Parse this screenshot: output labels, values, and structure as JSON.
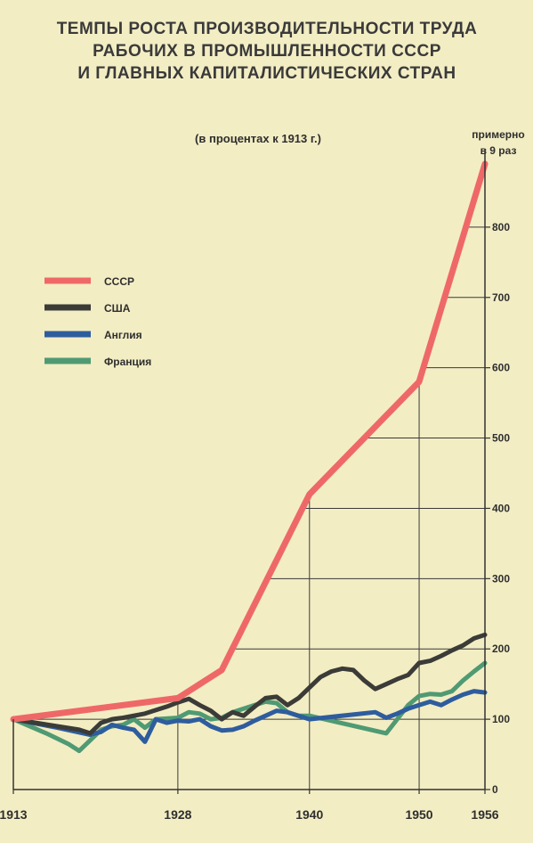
{
  "title_lines": [
    "ТЕМПЫ РОСТА ПРОИЗВОДИТЕЛЬНОСТИ ТРУДА",
    "РАБОЧИХ В ПРОМЫШЛЕННОСТИ СССР",
    "И ГЛАВНЫХ КАПИТАЛИСТИЧЕСКИХ СТРАН"
  ],
  "subtitle": "(в процентах к 1913 г.)",
  "note_lines": [
    "примерно",
    "в 9 раз"
  ],
  "chart_data": {
    "type": "line",
    "title": "ТЕМПЫ РОСТА ПРОИЗВОДИТЕЛЬНОСТИ ТРУДА РАБОЧИХ В ПРОМЫШЛЕННОСТИ СССР И ГЛАВНЫХ КАПИТАЛИСТИЧЕСКИХ СТРАН",
    "subtitle": "(в процентах к 1913 г.)",
    "xlabel": "",
    "ylabel": "",
    "xlim": [
      1913,
      1956
    ],
    "ylim": [
      0,
      900
    ],
    "x_ticks": [
      1913,
      1928,
      1940,
      1950,
      1956
    ],
    "y_ticks": [
      0,
      100,
      200,
      300,
      400,
      500,
      600,
      700,
      800
    ],
    "grid": true,
    "legend_position": "left",
    "annotation": "примерно в 9 раз",
    "series": [
      {
        "name": "СССР",
        "color": "#ef6868",
        "points": [
          [
            1913,
            100
          ],
          [
            1928,
            130
          ],
          [
            1932,
            170
          ],
          [
            1940,
            420
          ],
          [
            1950,
            580
          ],
          [
            1956,
            890
          ]
        ]
      },
      {
        "name": "США",
        "color": "#3b3b38",
        "points": [
          [
            1913,
            100
          ],
          [
            1917,
            90
          ],
          [
            1919,
            85
          ],
          [
            1920,
            80
          ],
          [
            1921,
            95
          ],
          [
            1922,
            100
          ],
          [
            1923,
            102
          ],
          [
            1925,
            108
          ],
          [
            1927,
            118
          ],
          [
            1928,
            124
          ],
          [
            1929,
            129
          ],
          [
            1930,
            120
          ],
          [
            1931,
            112
          ],
          [
            1932,
            100
          ],
          [
            1933,
            110
          ],
          [
            1934,
            105
          ],
          [
            1935,
            118
          ],
          [
            1936,
            130
          ],
          [
            1937,
            132
          ],
          [
            1938,
            120
          ],
          [
            1939,
            130
          ],
          [
            1940,
            145
          ],
          [
            1941,
            160
          ],
          [
            1942,
            168
          ],
          [
            1943,
            172
          ],
          [
            1944,
            170
          ],
          [
            1945,
            155
          ],
          [
            1946,
            143
          ],
          [
            1947,
            150
          ],
          [
            1948,
            157
          ],
          [
            1949,
            163
          ],
          [
            1950,
            180
          ],
          [
            1951,
            183
          ],
          [
            1952,
            190
          ],
          [
            1953,
            198
          ],
          [
            1954,
            205
          ],
          [
            1955,
            215
          ],
          [
            1956,
            220
          ]
        ]
      },
      {
        "name": "Англия",
        "color": "#2e5d9e",
        "points": [
          [
            1913,
            100
          ],
          [
            1917,
            88
          ],
          [
            1920,
            78
          ],
          [
            1921,
            82
          ],
          [
            1922,
            92
          ],
          [
            1923,
            88
          ],
          [
            1924,
            85
          ],
          [
            1925,
            68
          ],
          [
            1926,
            100
          ],
          [
            1927,
            95
          ],
          [
            1928,
            98
          ],
          [
            1929,
            97
          ],
          [
            1930,
            100
          ],
          [
            1931,
            90
          ],
          [
            1932,
            84
          ],
          [
            1933,
            85
          ],
          [
            1934,
            90
          ],
          [
            1935,
            98
          ],
          [
            1936,
            105
          ],
          [
            1937,
            112
          ],
          [
            1938,
            110
          ],
          [
            1939,
            105
          ],
          [
            1940,
            100
          ],
          [
            1946,
            110
          ],
          [
            1947,
            102
          ],
          [
            1948,
            108
          ],
          [
            1949,
            115
          ],
          [
            1950,
            120
          ],
          [
            1951,
            125
          ],
          [
            1952,
            120
          ],
          [
            1953,
            128
          ],
          [
            1954,
            135
          ],
          [
            1955,
            140
          ],
          [
            1956,
            138
          ]
        ]
      },
      {
        "name": "Франция",
        "color": "#4f9a73",
        "points": [
          [
            1913,
            100
          ],
          [
            1916,
            80
          ],
          [
            1918,
            65
          ],
          [
            1919,
            55
          ],
          [
            1920,
            70
          ],
          [
            1921,
            85
          ],
          [
            1922,
            90
          ],
          [
            1923,
            92
          ],
          [
            1924,
            100
          ],
          [
            1925,
            88
          ],
          [
            1926,
            100
          ],
          [
            1928,
            102
          ],
          [
            1929,
            110
          ],
          [
            1930,
            108
          ],
          [
            1931,
            100
          ],
          [
            1932,
            102
          ],
          [
            1933,
            110
          ],
          [
            1934,
            115
          ],
          [
            1935,
            120
          ],
          [
            1936,
            125
          ],
          [
            1937,
            123
          ],
          [
            1938,
            110
          ],
          [
            1939,
            105
          ],
          [
            1940,
            105
          ],
          [
            1947,
            80
          ],
          [
            1948,
            100
          ],
          [
            1949,
            120
          ],
          [
            1950,
            133
          ],
          [
            1951,
            136
          ],
          [
            1952,
            135
          ],
          [
            1953,
            140
          ],
          [
            1954,
            155
          ],
          [
            1955,
            168
          ],
          [
            1956,
            180
          ]
        ]
      }
    ]
  }
}
